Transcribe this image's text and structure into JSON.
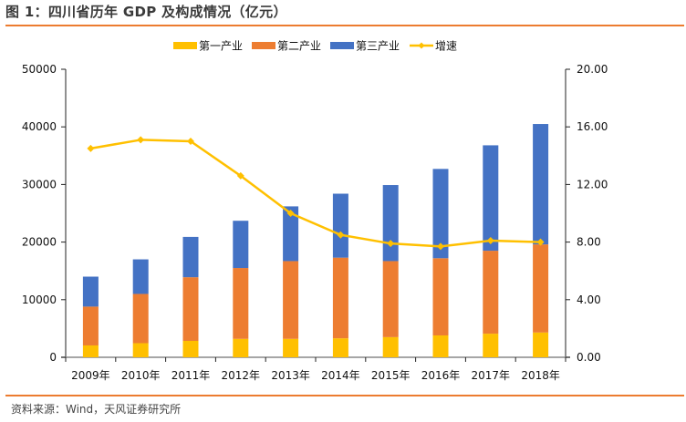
{
  "title": "图 1：四川省历年 GDP 及构成情况（亿元）",
  "source": "资料来源：Wind，天风证券研究所",
  "chart_data": {
    "type": "bar",
    "subtype": "stacked-bar-with-line",
    "title": "图 1：四川省历年 GDP 及构成情况（亿元）",
    "categories": [
      "2009年",
      "2010年",
      "2011年",
      "2012年",
      "2013年",
      "2014年",
      "2015年",
      "2016年",
      "2017年",
      "2018年"
    ],
    "series": [
      {
        "name": "第一产业",
        "type": "bar",
        "axis": "left",
        "color": "#ffc000",
        "values": [
          2060,
          2450,
          2850,
          3200,
          3200,
          3300,
          3500,
          3800,
          4100,
          4300
        ]
      },
      {
        "name": "第二产业",
        "type": "bar",
        "axis": "left",
        "color": "#ed7d31",
        "values": [
          6740,
          8550,
          11050,
          12300,
          13500,
          14000,
          13200,
          13400,
          14400,
          15300
        ]
      },
      {
        "name": "第三产业",
        "type": "bar",
        "axis": "left",
        "color": "#4472c4",
        "values": [
          5200,
          6000,
          7000,
          8200,
          9500,
          11100,
          13200,
          15500,
          18300,
          20900
        ]
      },
      {
        "name": "增速",
        "type": "line",
        "axis": "right",
        "color": "#ffc000",
        "marker": "diamond",
        "values": [
          14.5,
          15.1,
          15.0,
          12.6,
          10.0,
          8.5,
          7.9,
          7.7,
          8.1,
          8.0
        ]
      }
    ],
    "y_left": {
      "ylim": [
        0,
        50000
      ],
      "ticks": [
        0,
        10000,
        20000,
        30000,
        40000,
        50000
      ],
      "tick_labels": [
        "0",
        "10000",
        "20000",
        "30000",
        "40000",
        "50000"
      ]
    },
    "y_right": {
      "ylim": [
        0,
        20
      ],
      "ticks": [
        0,
        4,
        8,
        12,
        16,
        20
      ],
      "tick_labels": [
        "0.00",
        "4.00",
        "8.00",
        "12.00",
        "16.00",
        "20.00"
      ]
    },
    "xlabel": "",
    "ylabel": "",
    "grid": false,
    "legend": {
      "position": "top-center",
      "entries": [
        "第一产业",
        "第二产业",
        "第三产业",
        "增速"
      ]
    }
  }
}
